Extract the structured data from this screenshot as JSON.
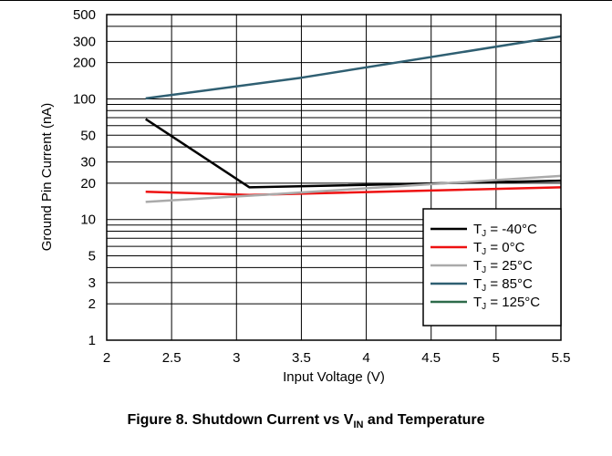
{
  "caption": {
    "prefix": "Figure 8. Shutdown Current vs V",
    "subscript": "IN",
    "suffix": " and Temperature"
  },
  "chart_data": {
    "type": "line",
    "title": "",
    "xlabel": "Input Voltage (V)",
    "ylabel": "Ground Pin Current (nA)",
    "xlim": [
      2,
      5.5
    ],
    "ylim": [
      1,
      500
    ],
    "yscale": "log",
    "grid": true,
    "legend_position": "bottom-right",
    "x_ticks": [
      2,
      2.5,
      3,
      3.5,
      4,
      4.5,
      5,
      5.5
    ],
    "x_tick_labels": [
      "2",
      "2.5",
      "3",
      "3.5",
      "4",
      "4.5",
      "5",
      "5.5"
    ],
    "y_ticks": [
      1,
      2,
      3,
      5,
      10,
      20,
      30,
      50,
      100,
      200,
      300,
      500
    ],
    "y_tick_labels": [
      "1",
      "2",
      "3",
      "5",
      "10",
      "20",
      "30",
      "50",
      "100",
      "200",
      "300",
      "500"
    ],
    "series": [
      {
        "name": "T",
        "sub": "J",
        "label_suffix": " = -40°C",
        "color": "#000000",
        "points": [
          [
            2.3,
            68
          ],
          [
            3.1,
            18.5
          ],
          [
            5.5,
            21
          ]
        ]
      },
      {
        "name": "T",
        "sub": "J",
        "label_suffix": " = 0°C",
        "color": "#ee1111",
        "points": [
          [
            2.3,
            17
          ],
          [
            3.1,
            16
          ],
          [
            5.5,
            18.5
          ]
        ]
      },
      {
        "name": "T",
        "sub": "J",
        "label_suffix": " = 25°C",
        "color": "#aaaaaa",
        "points": [
          [
            2.3,
            14
          ],
          [
            3.2,
            16
          ],
          [
            5.5,
            23
          ]
        ]
      },
      {
        "name": "T",
        "sub": "J",
        "label_suffix": " = 85°C",
        "color": "#2f5f72",
        "points": [
          [
            2.3,
            101
          ],
          [
            3.5,
            150
          ],
          [
            5.5,
            330
          ]
        ]
      },
      {
        "name": "T",
        "sub": "J",
        "label_suffix": " = 125°C",
        "color": "#2e6b4a",
        "points": []
      }
    ]
  }
}
